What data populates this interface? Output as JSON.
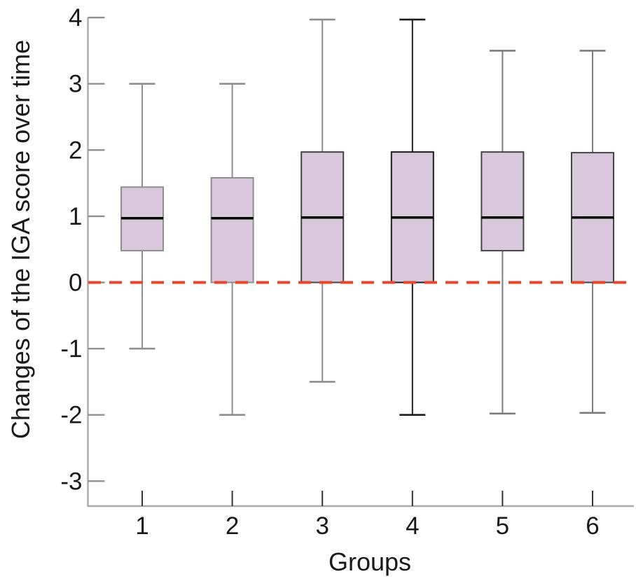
{
  "figure": {
    "background": "#ffffff"
  },
  "chart_data": {
    "type": "boxplot",
    "title": "",
    "xlabel": "Groups",
    "ylabel": "Changes of the IGA score over time",
    "categories": [
      "1",
      "2",
      "3",
      "4",
      "5",
      "6"
    ],
    "yticks": [
      4,
      3,
      2,
      1,
      0,
      -1,
      -2,
      -3
    ],
    "ylim": [
      -3.4,
      4.05
    ],
    "grid": false,
    "legend": "none",
    "reference_line": {
      "y": 0,
      "style": "dashed",
      "color": "#e5472b"
    },
    "series": [
      {
        "group": "1",
        "whisker_low": -1.0,
        "q1": 0.48,
        "median": 0.97,
        "q3": 1.44,
        "whisker_high": 3.0,
        "line_color": "#8e8e8e",
        "box_border": "#8e8e8e"
      },
      {
        "group": "2",
        "whisker_low": -2.0,
        "q1": 0.0,
        "median": 0.97,
        "q3": 1.58,
        "whisker_high": 3.0,
        "line_color": "#8e8e8e",
        "box_border": "#8e8e8e"
      },
      {
        "group": "3",
        "whisker_low": -1.5,
        "q1": 0.0,
        "median": 0.98,
        "q3": 1.97,
        "whisker_high": 3.97,
        "line_color": "#8e8e8e",
        "box_border": "#454545"
      },
      {
        "group": "4",
        "whisker_low": -2.0,
        "q1": 0.0,
        "median": 0.98,
        "q3": 1.97,
        "whisker_high": 3.97,
        "line_color": "#1c1c1c",
        "box_border": "#1c1c1c"
      },
      {
        "group": "5",
        "whisker_low": -1.98,
        "q1": 0.48,
        "median": 0.98,
        "q3": 1.97,
        "whisker_high": 3.5,
        "line_color": "#7c7c7c",
        "box_border": "#454545"
      },
      {
        "group": "6",
        "whisker_low": -1.97,
        "q1": 0.0,
        "median": 0.98,
        "q3": 1.96,
        "whisker_high": 3.5,
        "line_color": "#7c7c7c",
        "box_border": "#454545"
      }
    ],
    "box_fill": "#d9c7dc",
    "median_color": "#000000",
    "axis_color": "#ababab",
    "y_tick_color": "#8f8f8f",
    "x_tick_color": "#333333",
    "text_color": "#1a1a1a"
  }
}
